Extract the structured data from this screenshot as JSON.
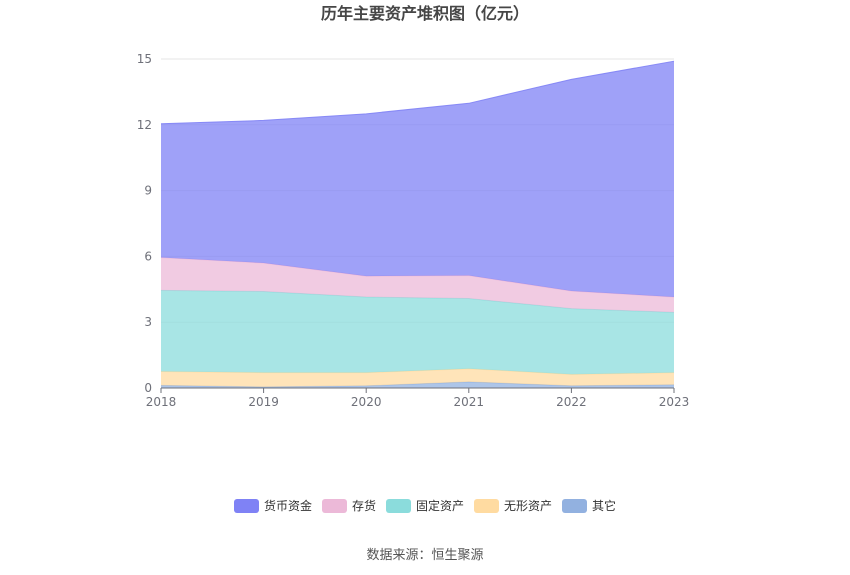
{
  "chart_data": {
    "type": "area",
    "stacked": true,
    "title": "历年主要资产堆积图（亿元）",
    "categories": [
      "2018",
      "2019",
      "2020",
      "2021",
      "2022",
      "2023"
    ],
    "ylim": [
      0,
      15
    ],
    "yticks": [
      0,
      3,
      6,
      9,
      12,
      15
    ],
    "grid": true,
    "legend_position": "bottom",
    "series": [
      {
        "name": "其它",
        "color": "#92b1e0",
        "values": [
          0.12,
          0.05,
          0.1,
          0.28,
          0.1,
          0.15
        ]
      },
      {
        "name": "无形资产",
        "color": "#ffdba1",
        "values": [
          0.63,
          0.65,
          0.6,
          0.6,
          0.52,
          0.55
        ]
      },
      {
        "name": "固定资产",
        "color": "#8bdcdc",
        "values": [
          3.7,
          3.7,
          3.45,
          3.2,
          3.0,
          2.75
        ]
      },
      {
        "name": "存货",
        "color": "#ecb9d8",
        "values": [
          1.5,
          1.3,
          0.95,
          1.05,
          0.8,
          0.7
        ]
      },
      {
        "name": "货币资金",
        "color": "#7f82f5",
        "values": [
          6.1,
          6.5,
          7.4,
          7.85,
          9.65,
          10.75
        ]
      }
    ],
    "source": "数据来源：恒生聚源"
  }
}
